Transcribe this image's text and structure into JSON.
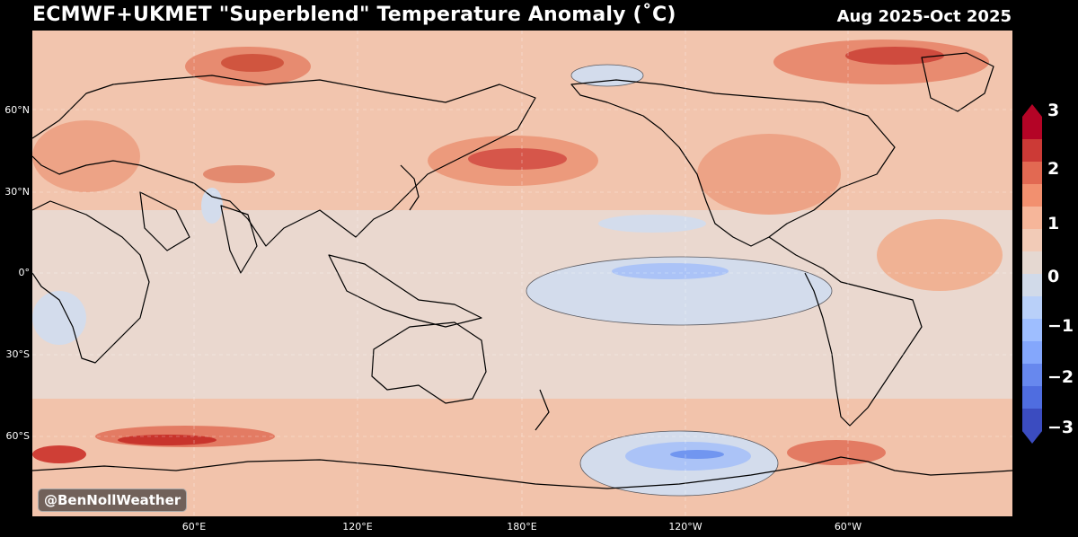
{
  "title": "ECMWF+UKMET \"Superblend\" Temperature Anomaly (˚C)",
  "period": "Aug 2025-Oct 2025",
  "credit": "@BenNollWeather",
  "lat_labels": [
    "60°N",
    "30°N",
    "0°",
    "30°S",
    "60°S"
  ],
  "lon_labels": [
    "60°E",
    "120°E",
    "180°E",
    "120°W",
    "60°W"
  ],
  "colorbar": {
    "ticks": [
      "3",
      "2",
      "1",
      "0",
      "−1",
      "−2",
      "−3"
    ],
    "colors": [
      "#b40426",
      "#cc3a36",
      "#e26952",
      "#f2906f",
      "#f6b69a",
      "#f2cbb7",
      "#e5d8d1",
      "#d1dae9",
      "#b9d0f9",
      "#9ebeff",
      "#84a7fc",
      "#6788ee",
      "#4f6de0",
      "#3b4cc0"
    ]
  },
  "colors": {
    "neutral": "#ebd9d0",
    "warm_light": "#f2c6b0",
    "warm_mid": "#ee9c7e",
    "warm_strong": "#d2483d",
    "cool_light": "#d3dcec",
    "cool_mid": "#a9c2f6",
    "cool_strong": "#6f8ff0"
  }
}
